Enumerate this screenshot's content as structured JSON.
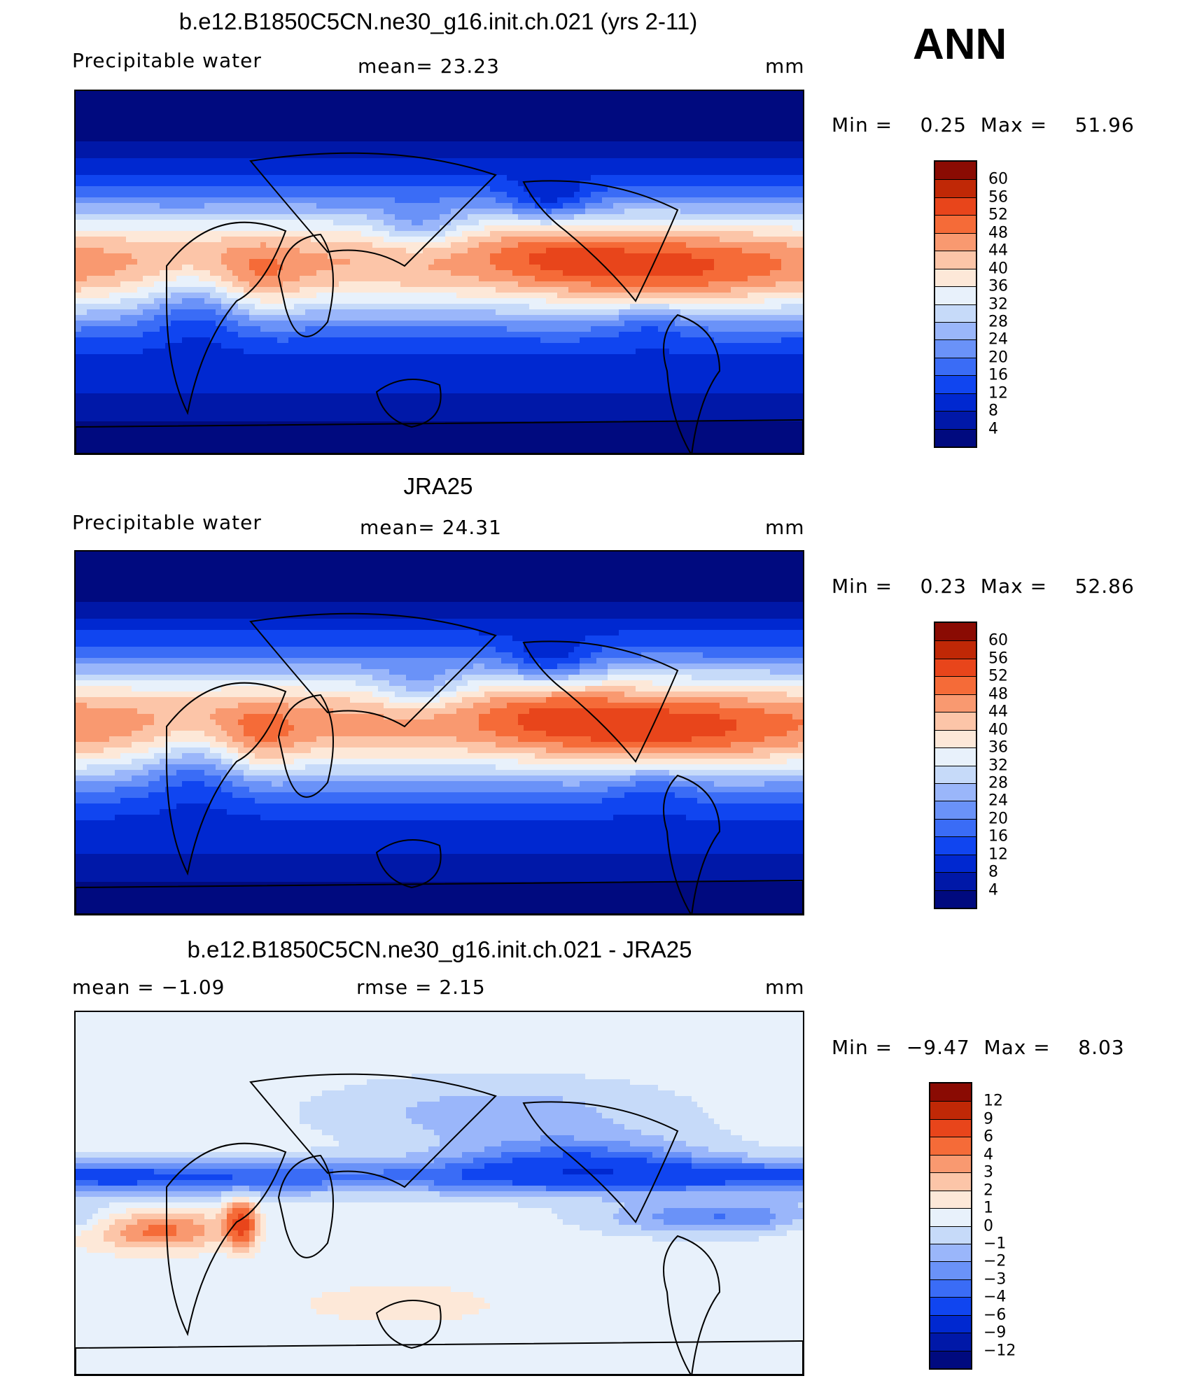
{
  "header": {
    "season": "ANN"
  },
  "panels": [
    {
      "id": "model",
      "title": "b.e12.B1850C5CN.ne30_g16.init.ch.021 (yrs 2-11)",
      "variable": "Precipitable  water",
      "mean_text": "mean=   23.23",
      "rmse_text": "",
      "units": "mm",
      "minmax_text": "Min =    0.25  Max =    51.96"
    },
    {
      "id": "obs",
      "title": "JRA25",
      "variable": "Precipitable  water",
      "mean_text": "mean=   24.31",
      "rmse_text": "",
      "units": "mm",
      "minmax_text": "Min =    0.23  Max =    52.86"
    },
    {
      "id": "diff",
      "title": "b.e12.B1850C5CN.ne30_g16.init.ch.021 - JRA25",
      "variable": "mean =   −1.09",
      "mean_text": "",
      "rmse_text": "rmse =    2.15",
      "units": "mm",
      "minmax_text": "Min =  −9.47  Max =    8.03"
    }
  ],
  "chart_data": [
    {
      "type": "heatmap",
      "title": "b.e12.B1850C5CN.ne30_g16.init.ch.021 (yrs 2-11)",
      "variable": "Precipitable water",
      "units": "mm",
      "mean": 23.23,
      "min": 0.25,
      "max": 51.96,
      "contour_levels": [
        4,
        8,
        12,
        16,
        20,
        24,
        28,
        32,
        36,
        40,
        44,
        48,
        52,
        56,
        60
      ],
      "colors": [
        "#000a7f",
        "#0018a8",
        "#0028d0",
        "#1045f0",
        "#3a6cf6",
        "#6a92f8",
        "#9ab6fa",
        "#c6daf9",
        "#e8f1fb",
        "#fde8d8",
        "#fcc5a8",
        "#f99970",
        "#f56b38",
        "#e8451b",
        "#c02806",
        "#8a0b03"
      ]
    },
    {
      "type": "heatmap",
      "title": "JRA25",
      "variable": "Precipitable water",
      "units": "mm",
      "mean": 24.31,
      "min": 0.23,
      "max": 52.86,
      "contour_levels": [
        4,
        8,
        12,
        16,
        20,
        24,
        28,
        32,
        36,
        40,
        44,
        48,
        52,
        56,
        60
      ],
      "colors": [
        "#000a7f",
        "#0018a8",
        "#0028d0",
        "#1045f0",
        "#3a6cf6",
        "#6a92f8",
        "#9ab6fa",
        "#c6daf9",
        "#e8f1fb",
        "#fde8d8",
        "#fcc5a8",
        "#f99970",
        "#f56b38",
        "#e8451b",
        "#c02806",
        "#8a0b03"
      ]
    },
    {
      "type": "heatmap",
      "title": "b.e12.B1850C5CN.ne30_g16.init.ch.021 - JRA25",
      "units": "mm",
      "mean": -1.09,
      "rmse": 2.15,
      "min": -9.47,
      "max": 8.03,
      "contour_levels": [
        -12,
        -9,
        -6,
        -4,
        -3,
        -2,
        -1,
        0,
        1,
        2,
        3,
        4,
        6,
        9,
        12
      ],
      "colors": [
        "#000a7f",
        "#0018a8",
        "#0028d0",
        "#1045f0",
        "#3a6cf6",
        "#6a92f8",
        "#9ab6fa",
        "#c6daf9",
        "#e8f1fb",
        "#fde8d8",
        "#fcc5a8",
        "#f99970",
        "#f56b38",
        "#e8451b",
        "#c02806",
        "#8a0b03"
      ]
    }
  ],
  "colorbars": [
    {
      "labels": [
        "60",
        "56",
        "52",
        "48",
        "44",
        "40",
        "36",
        "32",
        "28",
        "24",
        "20",
        "16",
        "12",
        "8",
        "4"
      ]
    },
    {
      "labels": [
        "60",
        "56",
        "52",
        "48",
        "44",
        "40",
        "36",
        "32",
        "28",
        "24",
        "20",
        "16",
        "12",
        "8",
        "4"
      ]
    },
    {
      "labels": [
        "12",
        "9",
        "6",
        "4",
        "3",
        "2",
        "1",
        "0",
        "−1",
        "−2",
        "−3",
        "−4",
        "−6",
        "−9",
        "−12"
      ]
    }
  ]
}
